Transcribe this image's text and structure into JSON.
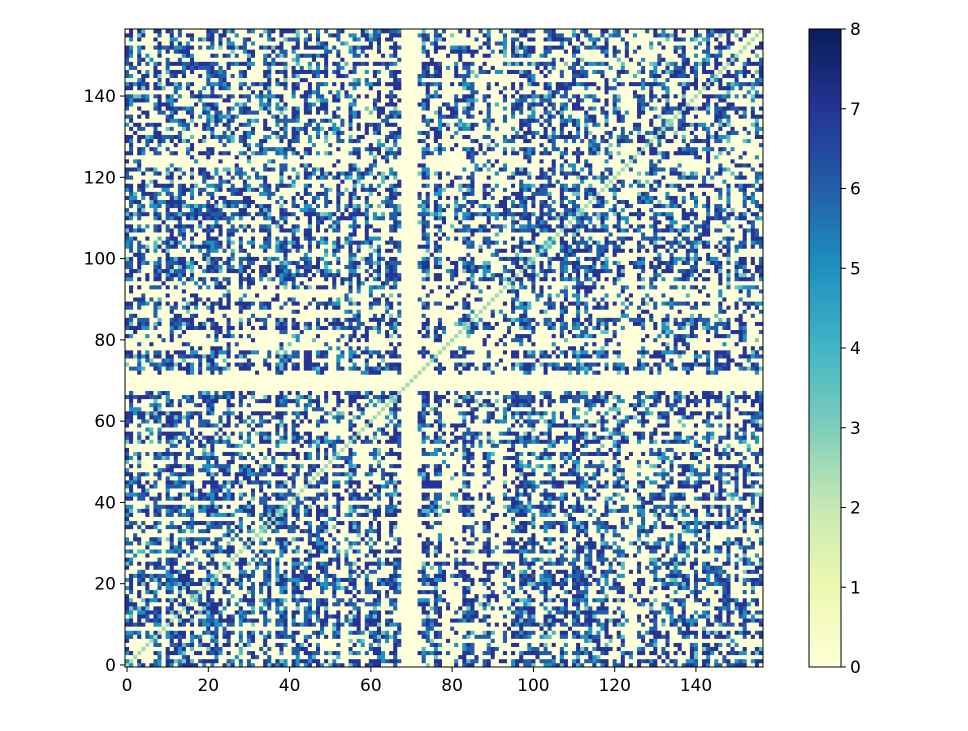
{
  "chart_data": {
    "type": "heatmap",
    "title": "",
    "xlabel": "",
    "ylabel": "",
    "rows": 157,
    "cols": 157,
    "xlim": [
      0,
      157
    ],
    "ylim": [
      0,
      157
    ],
    "origin": "lower",
    "x_ticks": [
      0,
      20,
      40,
      60,
      80,
      100,
      120,
      140
    ],
    "y_ticks": [
      0,
      20,
      40,
      60,
      80,
      100,
      120,
      140
    ],
    "x_tick_labels": [
      "0",
      "20",
      "40",
      "60",
      "80",
      "100",
      "120",
      "140"
    ],
    "y_tick_labels": [
      "0",
      "20",
      "40",
      "60",
      "80",
      "100",
      "120",
      "140"
    ],
    "colormap": "YlGnBu",
    "colormap_stops": [
      "#ffffd9",
      "#edf8b1",
      "#c7e9b4",
      "#7fcdbb",
      "#41b6c4",
      "#1d91c0",
      "#225ea8",
      "#253494",
      "#081d58"
    ],
    "vmin": 0,
    "vmax": 8,
    "colorbar": {
      "ticks": [
        0,
        1,
        2,
        3,
        4,
        5,
        6,
        7,
        8
      ],
      "tick_labels": [
        "0",
        "1",
        "2",
        "3",
        "4",
        "5",
        "6",
        "7",
        "8"
      ],
      "placement": "right"
    },
    "diagonal_value": 2.5,
    "empty_bands": {
      "cols": [
        69,
        70
      ],
      "rows": [
        68,
        69,
        70,
        71
      ]
    },
    "note_values": "Cell matrix is symmetric; individual values (0–8) are too dense to read exactly, dominant values are 0 (pale) and 6–7 (dark blue)."
  }
}
